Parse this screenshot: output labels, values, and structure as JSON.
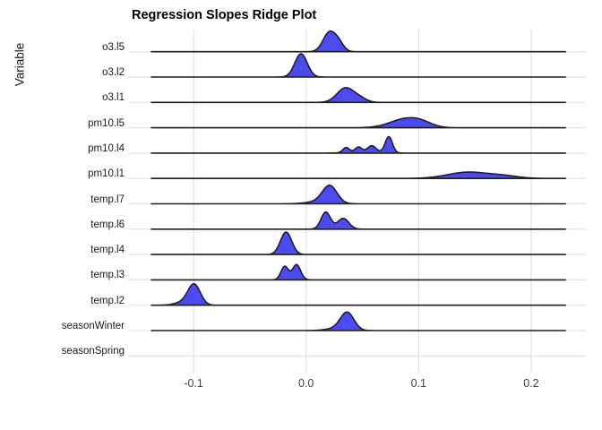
{
  "chart_data": {
    "type": "ridgeline",
    "title": "Regression Slopes Ridge Plot",
    "ylabel": "Variable",
    "xlabel": "",
    "x_ticks": [
      -0.1,
      0.0,
      0.1,
      0.2
    ],
    "x_tick_labels": [
      "-0.1",
      "0.0",
      "0.1",
      "0.2"
    ],
    "xlim": [
      -0.158,
      0.249
    ],
    "baseline_range": [
      -0.1375,
      0.2305
    ],
    "grid": true,
    "legend": "none",
    "colors": {
      "fill": "#4b4bef",
      "outline": "#1f1f1f",
      "gridline": "#e2e2e2",
      "tick_text": "#404040",
      "label_text": "#1a1a1a"
    },
    "rows": [
      {
        "label": "o3.l5",
        "baseline": true,
        "components": [
          {
            "mu": 0.0205,
            "sd": 0.0055,
            "amp": 21
          },
          {
            "mu": 0.029,
            "sd": 0.0045,
            "amp": 9
          }
        ]
      },
      {
        "label": "o3.l2",
        "baseline": true,
        "components": [
          {
            "mu": -0.0045,
            "sd": 0.0055,
            "amp": 26
          }
        ]
      },
      {
        "label": "o3.l1",
        "baseline": true,
        "components": [
          {
            "mu": 0.035,
            "sd": 0.0075,
            "amp": 16
          },
          {
            "mu": 0.048,
            "sd": 0.006,
            "amp": 4
          }
        ]
      },
      {
        "label": "pm10.l5",
        "baseline": true,
        "components": [
          {
            "mu": 0.089,
            "sd": 0.014,
            "amp": 10
          },
          {
            "mu": 0.103,
            "sd": 0.009,
            "amp": 3
          }
        ]
      },
      {
        "label": "pm10.l4",
        "baseline": true,
        "components": [
          {
            "mu": 0.0355,
            "sd": 0.0028,
            "amp": 5.5
          },
          {
            "mu": 0.0465,
            "sd": 0.0028,
            "amp": 5
          },
          {
            "mu": 0.0585,
            "sd": 0.0035,
            "amp": 6.5
          },
          {
            "mu": 0.0735,
            "sd": 0.0032,
            "amp": 18
          },
          {
            "mu": 0.052,
            "sd": 0.012,
            "amp": 2
          }
        ]
      },
      {
        "label": "pm10.l1",
        "baseline": true,
        "components": [
          {
            "mu": 0.144,
            "sd": 0.018,
            "amp": 7
          },
          {
            "mu": 0.176,
            "sd": 0.013,
            "amp": 2.5
          }
        ]
      },
      {
        "label": "temp.l7",
        "baseline": true,
        "components": [
          {
            "mu": 0.021,
            "sd": 0.0065,
            "amp": 20
          },
          {
            "mu": 0.008,
            "sd": 0.009,
            "amp": 2
          }
        ]
      },
      {
        "label": "temp.l6",
        "baseline": true,
        "components": [
          {
            "mu": 0.0175,
            "sd": 0.0042,
            "amp": 19
          },
          {
            "mu": 0.033,
            "sd": 0.005,
            "amp": 12
          }
        ]
      },
      {
        "label": "temp.l4",
        "baseline": true,
        "components": [
          {
            "mu": -0.0178,
            "sd": 0.005,
            "amp": 25
          }
        ]
      },
      {
        "label": "temp.l3",
        "baseline": true,
        "components": [
          {
            "mu": -0.019,
            "sd": 0.0033,
            "amp": 15
          },
          {
            "mu": -0.0085,
            "sd": 0.0036,
            "amp": 17
          }
        ]
      },
      {
        "label": "temp.l2",
        "baseline": true,
        "components": [
          {
            "mu": -0.0995,
            "sd": 0.0055,
            "amp": 23
          },
          {
            "mu": -0.11,
            "sd": 0.007,
            "amp": 3
          }
        ]
      },
      {
        "label": "seasonWinter",
        "baseline": true,
        "components": [
          {
            "mu": 0.0365,
            "sd": 0.006,
            "amp": 20
          },
          {
            "mu": 0.025,
            "sd": 0.008,
            "amp": 2
          }
        ]
      },
      {
        "label": "seasonSpring",
        "baseline": false,
        "components": []
      }
    ]
  }
}
